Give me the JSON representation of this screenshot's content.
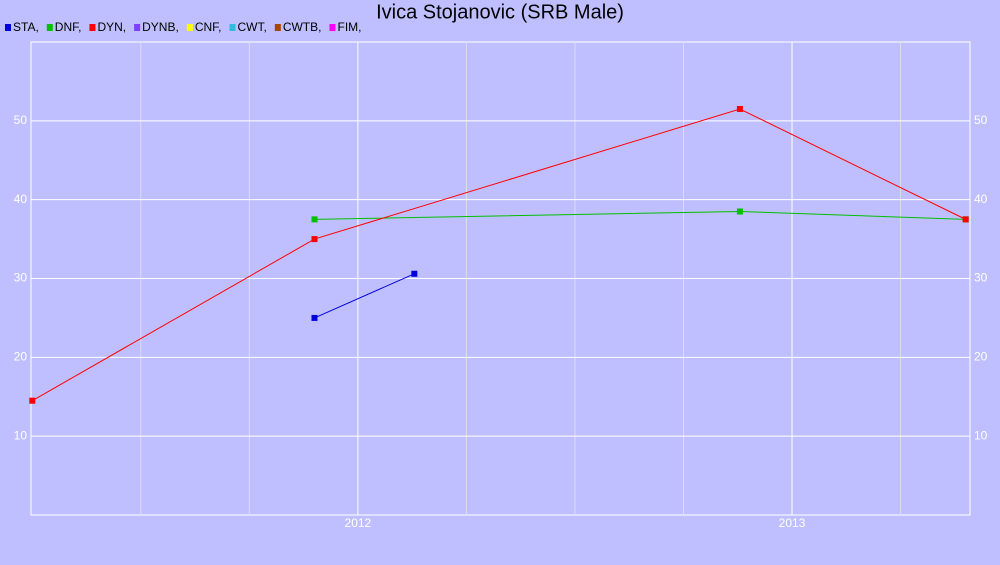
{
  "chart_data": {
    "type": "line",
    "title": "Ivica Stojanovic (SRB Male)",
    "xlim": [
      2011.247,
      2013.41
    ],
    "xticks": [
      2012,
      2013
    ],
    "x_minor_ticks": [
      2011.5,
      2011.75,
      2012.25,
      2012.5,
      2012.75,
      2013.25
    ],
    "ylim": [
      0,
      60
    ],
    "yticks": [
      10,
      20,
      30,
      40,
      50
    ],
    "grid": true,
    "series": [
      {
        "name": "STA,",
        "color": "#0000dd",
        "x": [
          2011.9,
          2012.13
        ],
        "values": [
          25,
          30.6
        ]
      },
      {
        "name": "DNF,",
        "color": "#00c000",
        "x": [
          2011.9,
          2012.88,
          2013.4
        ],
        "values": [
          37.5,
          38.5,
          37.5
        ]
      },
      {
        "name": "DYN,",
        "color": "#ff0000",
        "x": [
          2011.25,
          2011.9,
          2012.88,
          2013.4
        ],
        "values": [
          14.5,
          35,
          51.5,
          37.5
        ]
      },
      {
        "name": "DYNB,",
        "color": "#7f3fff",
        "x": [],
        "values": []
      },
      {
        "name": "CNF,",
        "color": "#ffff00",
        "x": [],
        "values": []
      },
      {
        "name": "CWT,",
        "color": "#33bbdd",
        "x": [],
        "values": []
      },
      {
        "name": "CWTB,",
        "color": "#aa4400",
        "x": [],
        "values": []
      },
      {
        "name": "FIM,",
        "color": "#ff00ff",
        "x": [],
        "values": []
      }
    ]
  }
}
